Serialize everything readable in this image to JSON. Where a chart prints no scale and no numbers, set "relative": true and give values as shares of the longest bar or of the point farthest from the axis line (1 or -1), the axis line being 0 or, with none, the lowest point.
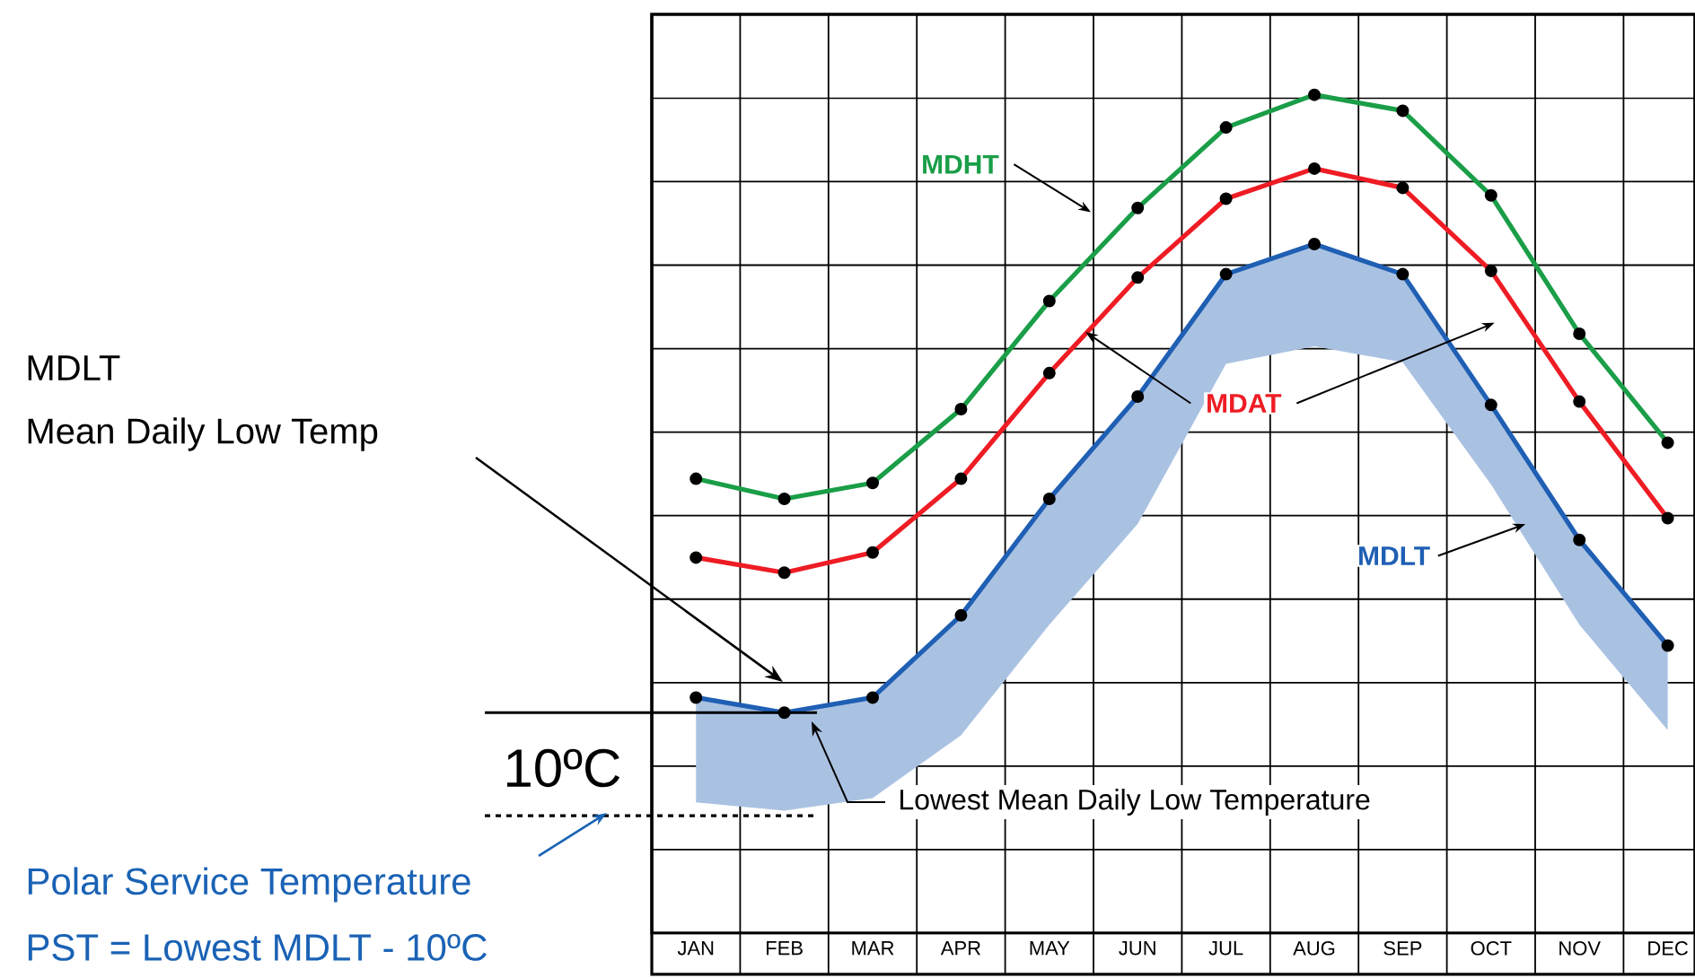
{
  "chart_data": {
    "type": "line",
    "relative": true,
    "grid": true,
    "marker": "circle",
    "categories": [
      "JAN",
      "FEB",
      "MAR",
      "APR",
      "MAY",
      "JUN",
      "JUL",
      "AUG",
      "SEP",
      "OCT",
      "NOV",
      "DEC"
    ],
    "series": [
      {
        "name": "MDHT",
        "color": "#1a9e48",
        "values": [
          0.542,
          0.518,
          0.537,
          0.625,
          0.754,
          0.865,
          0.961,
          1,
          0.981,
          0.88,
          0.715,
          0.585
        ]
      },
      {
        "name": "MDAT",
        "color": "#ee1c24",
        "values": [
          0.448,
          0.43,
          0.454,
          0.542,
          0.668,
          0.782,
          0.876,
          0.912,
          0.889,
          0.79,
          0.634,
          0.495
        ]
      },
      {
        "name": "MDLT",
        "color": "#1f5fb4",
        "values": [
          0.281,
          0.263,
          0.281,
          0.379,
          0.518,
          0.64,
          0.786,
          0.822,
          0.786,
          0.63,
          0.469,
          0.343
        ],
        "lower": [
          0.156,
          0.146,
          0.161,
          0.236,
          0.368,
          0.488,
          0.679,
          0.7,
          0.681,
          0.535,
          0.368,
          0.242
        ],
        "upper": [
          0.281,
          0.263,
          0.281,
          0.379,
          0.518,
          0.64,
          0.786,
          0.822,
          0.786,
          0.63,
          0.469,
          0.343
        ]
      }
    ],
    "ref_lines": [
      {
        "axis": "y",
        "value": 0.263,
        "line_style": "solid",
        "color": "#000000"
      },
      {
        "axis": "y",
        "value": 0.14,
        "line_style": "dashed",
        "color": "#000000"
      }
    ],
    "annotations": [
      "MDLT",
      "Mean Daily Low Temp",
      "10ºC",
      "Lowest Mean Daily Low Temperature",
      "Polar Service Temperature",
      "PST = Lowest MDLT - 10ºC"
    ]
  }
}
